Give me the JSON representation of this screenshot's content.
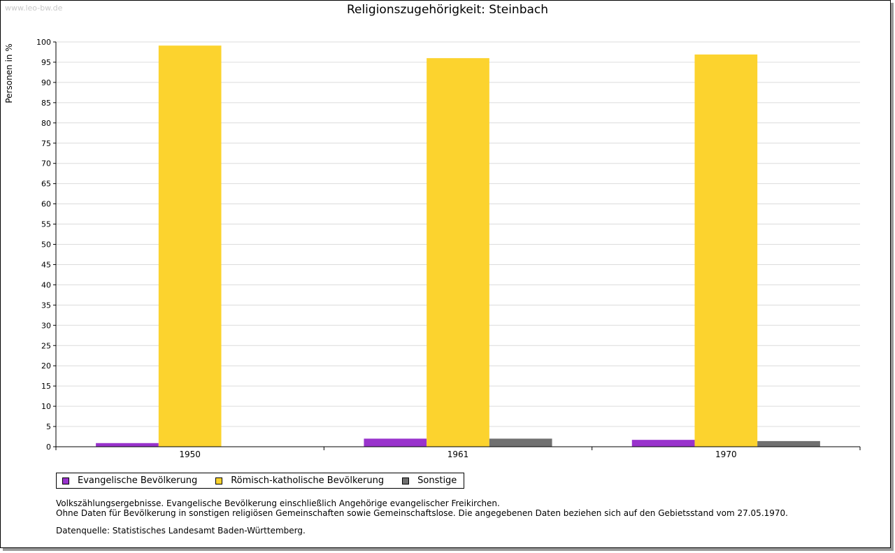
{
  "watermark": "www.leo-bw.de",
  "chart_data": {
    "type": "bar",
    "title": "Religionszugehörigkeit: Steinbach",
    "xlabel": "",
    "ylabel": "Personen in %",
    "ylim": [
      0,
      100
    ],
    "yticks": [
      0,
      5,
      10,
      15,
      20,
      25,
      30,
      35,
      40,
      45,
      50,
      55,
      60,
      65,
      70,
      75,
      80,
      85,
      90,
      95,
      100
    ],
    "grid": true,
    "categories": [
      "1950",
      "1961",
      "1970"
    ],
    "series": [
      {
        "name": "Evangelische Bevölkerung",
        "color": "#9933cc",
        "values": [
          0.9,
          2.0,
          1.7
        ]
      },
      {
        "name": "Römisch-katholische Bevölkerung",
        "color": "#fcd32e",
        "values": [
          99.1,
          96.0,
          96.9
        ]
      },
      {
        "name": "Sonstige",
        "color": "#707070",
        "values": [
          null,
          2.0,
          1.4
        ]
      }
    ],
    "legend_position": "bottom-left"
  },
  "notes": {
    "line1": "Volkszählungsergebnisse. Evangelische Bevölkerung einschließlich Angehörige evangelischer Freikirchen.",
    "line2": "Ohne Daten für Bevölkerung in sonstigen religiösen Gemeinschaften sowie Gemeinschaftslose. Die angegebenen Daten beziehen sich auf den Gebietsstand vom 27.05.1970."
  },
  "source": "Datenquelle: Statistisches Landesamt Baden-Württemberg."
}
